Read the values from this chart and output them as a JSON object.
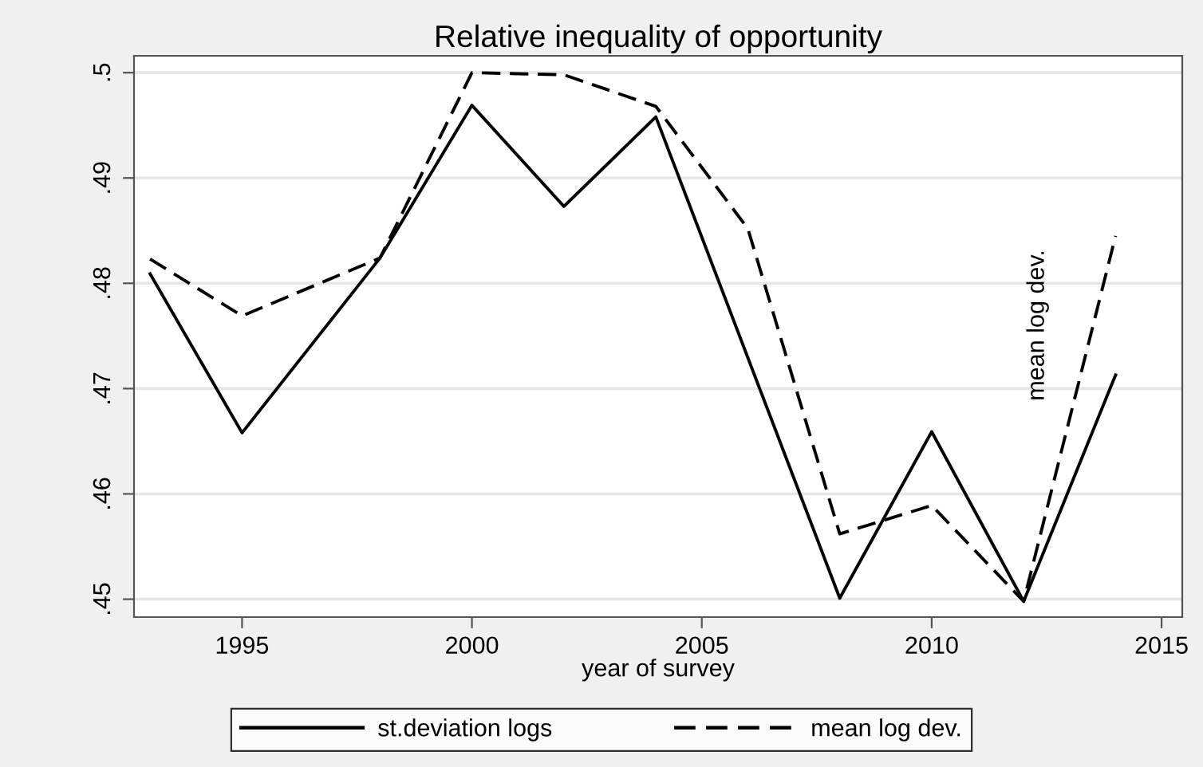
{
  "chart_data": {
    "type": "line",
    "title": "Relative inequality of opportunity",
    "xlabel": "year of survey",
    "xlim": [
      1992.65,
      2015.45
    ],
    "xticks": [
      1995,
      2000,
      2005,
      2010,
      2015
    ],
    "ylim": [
      0.4483,
      0.5016
    ],
    "yticks": [
      {
        "value": 0.45,
        "label": ".45"
      },
      {
        "value": 0.46,
        "label": ".46"
      },
      {
        "value": 0.47,
        "label": ".47"
      },
      {
        "value": 0.48,
        "label": ".48"
      },
      {
        "value": 0.49,
        "label": ".49"
      },
      {
        "value": 0.5,
        "label": ".5"
      }
    ],
    "grid": "y",
    "legend": "bottom",
    "marker": "none",
    "series": [
      {
        "name": "st.deviation logs",
        "color": "#000000",
        "line_style": "solid",
        "x": [
          1993,
          1995,
          1998,
          2000,
          2002,
          2004,
          2008,
          2010,
          2012,
          2014
        ],
        "values": [
          0.4809,
          0.4658,
          0.4824,
          0.4969,
          0.4873,
          0.4958,
          0.4501,
          0.4659,
          0.4498,
          0.4713
        ]
      },
      {
        "name": "mean log dev.",
        "color": "#000000",
        "line_style": "dashed",
        "x": [
          1993,
          1995,
          1998,
          2000,
          2002,
          2004,
          2006,
          2008,
          2010,
          2012,
          2014
        ],
        "values": [
          0.4823,
          0.4769,
          0.4824,
          0.5,
          0.4998,
          0.4968,
          0.4852,
          0.4562,
          0.4589,
          0.4498,
          0.4845
        ]
      }
    ],
    "annotations": [
      "mean log dev."
    ]
  }
}
